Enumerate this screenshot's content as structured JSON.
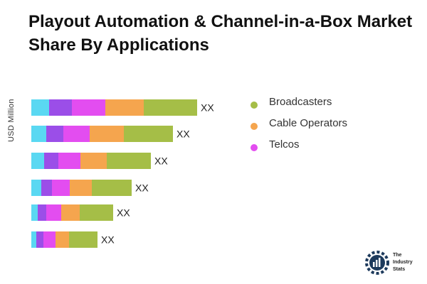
{
  "title": "Playout Automation & Channel-in-a-Box Market Share By Applications",
  "chart_data": {
    "type": "bar",
    "orientation": "horizontal",
    "stacked": true,
    "title": "Playout Automation & Channel-in-a-Box Market Share By Applications",
    "xlabel": "",
    "ylabel": "USD Million",
    "categories": [
      "",
      "",
      "",
      "",
      "",
      ""
    ],
    "bar_labels": [
      "XX",
      "XX",
      "XX",
      "XX",
      "XX",
      "XX"
    ],
    "segment_colors": [
      "#5ad8f2",
      "#9b4ee8",
      "#e34df0",
      "#f5a54e",
      "#a5be47"
    ],
    "series": [
      {
        "values": [
          25,
          21,
          18,
          14,
          9,
          7
        ]
      },
      {
        "values": [
          32,
          24,
          20,
          15,
          12,
          10
        ]
      },
      {
        "values": [
          47,
          37,
          31,
          25,
          21,
          17
        ]
      },
      {
        "values": [
          54,
          48,
          37,
          31,
          26,
          19
        ]
      },
      {
        "values": [
          75,
          69,
          62,
          56,
          47,
          40
        ]
      }
    ],
    "legend": {
      "position": "right",
      "entries": [
        {
          "label": "Broadcasters",
          "color": "#a5be47"
        },
        {
          "label": "Cable Operators",
          "color": "#f5a54e"
        },
        {
          "label": "Telcos",
          "color": "#e34df0"
        }
      ]
    },
    "grid": false
  },
  "branding": {
    "logo_line1": "The",
    "logo_line2": "Industry",
    "logo_line3": "Stats"
  }
}
